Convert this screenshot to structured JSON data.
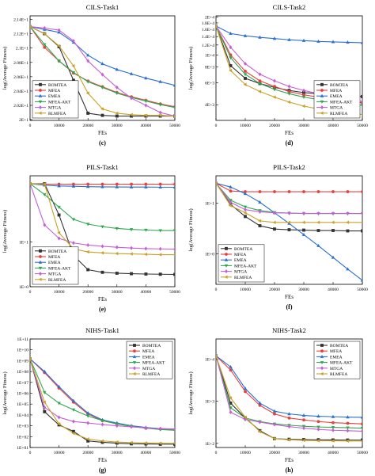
{
  "chart_data": [
    {
      "type": "line",
      "title": "CILS-Task1",
      "caption": "(c)",
      "xlabel": "FEs",
      "ylabel": "log(Average Fitness)",
      "xlim": [
        0,
        50000
      ],
      "ylim": [
        1.999,
        2.145
      ],
      "y_scale": "linear",
      "xticks": [
        0,
        10000,
        20000,
        30000,
        40000,
        50000
      ],
      "xtick_labels": [
        "0",
        "10000",
        "20000",
        "30000",
        "40000",
        "50000"
      ],
      "yticks": [
        2.0,
        2.02,
        2.04,
        2.06,
        2.08,
        2.1,
        2.12,
        2.14
      ],
      "ytick_labels": [
        "2E+1",
        "2.02E+1",
        "2.04E+1",
        "2.06E+1",
        "2.08E+1",
        "2.1E+1",
        "2.12E+1",
        "2.14E+1"
      ],
      "legend_position": "bottom-left",
      "x": [
        0,
        5000,
        10000,
        15000,
        20000,
        25000,
        30000,
        35000,
        40000,
        45000,
        50000
      ],
      "series": [
        {
          "name": "BOMTEA",
          "color": "#333333",
          "marker": "square",
          "values": [
            2.13,
            2.12,
            2.102,
            2.055,
            2.009,
            2.006,
            2.005,
            2.005,
            2.005,
            2.005,
            2.005
          ]
        },
        {
          "name": "MFEA",
          "color": "#e8413c",
          "marker": "circle",
          "values": [
            2.13,
            2.101,
            2.082,
            2.065,
            2.054,
            2.046,
            2.038,
            2.032,
            2.027,
            2.022,
            2.018
          ]
        },
        {
          "name": "EMEA",
          "color": "#2a6fd1",
          "marker": "triangle-up",
          "values": [
            2.13,
            2.126,
            2.122,
            2.108,
            2.09,
            2.078,
            2.07,
            2.064,
            2.058,
            2.053,
            2.048
          ]
        },
        {
          "name": "MFEA-AKT",
          "color": "#2fa84f",
          "marker": "triangle-down",
          "values": [
            2.13,
            2.105,
            2.082,
            2.066,
            2.053,
            2.045,
            2.037,
            2.031,
            2.026,
            2.021,
            2.017
          ]
        },
        {
          "name": "MTGA",
          "color": "#c65fd6",
          "marker": "diamond",
          "values": [
            2.13,
            2.128,
            2.125,
            2.11,
            2.082,
            2.063,
            2.045,
            2.03,
            2.02,
            2.01,
            2.005
          ]
        },
        {
          "name": "RLMFEA",
          "color": "#c9a227",
          "marker": "triangle-left",
          "values": [
            2.13,
            2.12,
            2.103,
            2.075,
            2.037,
            2.015,
            2.009,
            2.007,
            2.006,
            2.006,
            2.005
          ]
        }
      ]
    },
    {
      "type": "line",
      "title": "CILS-Task2",
      "caption": "(d)",
      "xlabel": "FEs",
      "ylabel": "log(Average Fitness)",
      "xlim": [
        0,
        50000
      ],
      "ylim": [
        3000,
        20500
      ],
      "y_scale": "log",
      "xticks": [
        0,
        10000,
        20000,
        30000,
        40000,
        50000
      ],
      "xtick_labels": [
        "0",
        "10000",
        "20000",
        "30000",
        "40000",
        "50000"
      ],
      "yticks": [
        4000,
        6000,
        8000,
        10000,
        12000,
        14000,
        16000,
        18000,
        20000
      ],
      "ytick_labels": [
        "4E+3",
        "6E+3",
        "8E+3",
        "1E+4",
        "1.2E+4",
        "1.4E+4",
        "1.6E+4",
        "1.8E+4",
        "2E+4"
      ],
      "legend_position": "bottom-right",
      "x": [
        0,
        5000,
        10000,
        15000,
        20000,
        25000,
        30000,
        35000,
        40000,
        45000,
        50000
      ],
      "series": [
        {
          "name": "BOMTEA",
          "color": "#333333",
          "marker": "square",
          "values": [
            17000,
            8200,
            6500,
            5900,
            5500,
            5200,
            5000,
            4900,
            4800,
            4700,
            4650
          ]
        },
        {
          "name": "MFEA",
          "color": "#e8413c",
          "marker": "circle",
          "values": [
            17000,
            10000,
            7400,
            6200,
            5600,
            5100,
            4800,
            4600,
            4400,
            4250,
            4150
          ]
        },
        {
          "name": "EMEA",
          "color": "#2a6fd1",
          "marker": "triangle-up",
          "values": [
            17000,
            14800,
            14200,
            13800,
            13500,
            13200,
            13000,
            12800,
            12700,
            12600,
            12500
          ]
        },
        {
          "name": "MFEA-AKT",
          "color": "#2fa84f",
          "marker": "triangle-down",
          "values": [
            17000,
            9500,
            7000,
            5900,
            5300,
            4900,
            4600,
            4400,
            4200,
            4050,
            3950
          ]
        },
        {
          "name": "MTGA",
          "color": "#c65fd6",
          "marker": "diamond",
          "values": [
            17000,
            11500,
            8500,
            7000,
            6200,
            5600,
            5200,
            4900,
            4600,
            4400,
            4250
          ]
        },
        {
          "name": "RLMFEA",
          "color": "#c9a227",
          "marker": "triangle-left",
          "values": [
            17000,
            7500,
            5800,
            5100,
            4600,
            4200,
            3900,
            3700,
            3550,
            3420,
            3350
          ]
        }
      ]
    },
    {
      "type": "line",
      "title": "PILS-Task1",
      "caption": "(e)",
      "xlabel": "FEs",
      "ylabel": "log(Average Fitness)",
      "xlim": [
        0,
        50000
      ],
      "ylim": [
        1,
        300
      ],
      "y_scale": "log",
      "xticks": [
        0,
        10000,
        20000,
        30000,
        40000,
        50000
      ],
      "xtick_labels": [
        "0",
        "10000",
        "20000",
        "30000",
        "40000",
        "50000"
      ],
      "yticks": [
        1,
        10
      ],
      "ytick_labels": [
        "1E+0",
        "1E+1"
      ],
      "legend_position": "bottom-left",
      "x": [
        0,
        5000,
        10000,
        15000,
        20000,
        25000,
        30000,
        35000,
        40000,
        45000,
        50000
      ],
      "series": [
        {
          "name": "BOMTEA",
          "color": "#333333",
          "marker": "square",
          "values": [
            200,
            200,
            40,
            5,
            2.4,
            2.1,
            2.0,
            1.95,
            1.92,
            1.9,
            1.88
          ]
        },
        {
          "name": "MFEA",
          "color": "#e8413c",
          "marker": "circle",
          "values": [
            200,
            195,
            195,
            195,
            195,
            195,
            195,
            195,
            195,
            195,
            195
          ]
        },
        {
          "name": "EMEA",
          "color": "#2a6fd1",
          "marker": "triangle-up",
          "values": [
            200,
            185,
            178,
            175,
            172,
            170,
            169,
            168,
            168,
            167,
            167
          ]
        },
        {
          "name": "MFEA-AKT",
          "color": "#2fa84f",
          "marker": "triangle-down",
          "values": [
            200,
            115,
            60,
            32,
            25,
            22,
            20,
            19,
            18.5,
            18,
            18
          ]
        },
        {
          "name": "MTGA",
          "color": "#c65fd6",
          "marker": "diamond",
          "values": [
            200,
            24,
            12,
            9.5,
            8.5,
            8,
            7.6,
            7.3,
            7.1,
            7,
            6.9
          ]
        },
        {
          "name": "RLMFEA",
          "color": "#c9a227",
          "marker": "triangle-left",
          "values": [
            200,
            195,
            16,
            7,
            6,
            5.7,
            5.5,
            5.4,
            5.3,
            5.2,
            5.2
          ]
        }
      ]
    },
    {
      "type": "line",
      "title": "PILS-Task2",
      "caption": "(f)",
      "xlabel": "FEs",
      "ylabel": "log(Average Fitness)",
      "xlim": [
        0,
        50000
      ],
      "ylim": [
        0.25,
        35
      ],
      "y_scale": "log",
      "xticks": [
        0,
        10000,
        20000,
        30000,
        40000,
        50000
      ],
      "xtick_labels": [
        "0",
        "10000",
        "20000",
        "30000",
        "40000",
        "50000"
      ],
      "yticks": [
        1,
        10
      ],
      "ytick_labels": [
        "1E+0",
        "1E+1"
      ],
      "legend_position": "bottom-left",
      "x": [
        0,
        5000,
        10000,
        15000,
        20000,
        25000,
        30000,
        35000,
        40000,
        45000,
        50000
      ],
      "series": [
        {
          "name": "BOMTEA",
          "color": "#333333",
          "marker": "square",
          "values": [
            25,
            9.5,
            5.5,
            3.6,
            3.1,
            3.0,
            2.95,
            2.9,
            2.9,
            2.85,
            2.85
          ]
        },
        {
          "name": "MFEA",
          "color": "#e8413c",
          "marker": "circle",
          "values": [
            25,
            17.5,
            17,
            17,
            17,
            17,
            17,
            17,
            17,
            17,
            17
          ]
        },
        {
          "name": "EMEA",
          "color": "#2a6fd1",
          "marker": "triangle-up",
          "values": [
            25,
            21,
            15.5,
            10.5,
            6.5,
            4.0,
            2.4,
            1.45,
            0.85,
            0.5,
            0.3
          ]
        },
        {
          "name": "MFEA-AKT",
          "color": "#2fa84f",
          "marker": "triangle-down",
          "values": [
            25,
            11.5,
            8.5,
            7.2,
            6.6,
            6.4,
            6.3,
            6.3,
            6.3,
            6.3,
            6.3
          ]
        },
        {
          "name": "MTGA",
          "color": "#c65fd6",
          "marker": "diamond",
          "values": [
            25,
            10.5,
            7.5,
            6.8,
            6.5,
            6.4,
            6.3,
            6.3,
            6.3,
            6.3,
            6.3
          ]
        },
        {
          "name": "RLMFEA",
          "color": "#c9a227",
          "marker": "triangle-left",
          "values": [
            25,
            9,
            6.5,
            4.5,
            4.2,
            4.2,
            4.2,
            4.2,
            4.2,
            4.2,
            4.2
          ]
        }
      ]
    },
    {
      "type": "line",
      "title": "NIHS-Task1",
      "caption": "(g)",
      "xlabel": "FEs",
      "ylabel": "log(Average Fitness)",
      "xlim": [
        0,
        50000
      ],
      "ylim": [
        10,
        100000000000
      ],
      "y_scale": "log",
      "xticks": [
        0,
        10000,
        20000,
        30000,
        40000,
        50000
      ],
      "xtick_labels": [
        "0",
        "10000",
        "20000",
        "30000",
        "40000",
        "50000"
      ],
      "yticks": [
        10,
        100,
        1000,
        10000,
        100000,
        1000000,
        10000000,
        100000000,
        1000000000,
        10000000000,
        100000000000
      ],
      "ytick_labels": [
        "1E+01",
        "1E+02",
        "1E+03",
        "1E+04",
        "1E+05",
        "1E+06",
        "1E+07",
        "1E+08",
        "1E+09",
        "1E+10",
        "1E+11"
      ],
      "legend_position": "top-right",
      "x": [
        0,
        5000,
        10000,
        15000,
        20000,
        25000,
        30000,
        35000,
        40000,
        45000,
        50000
      ],
      "series": [
        {
          "name": "BOMTEA",
          "color": "#333333",
          "marker": "square",
          "values": [
            1500000000,
            20000,
            1200,
            300,
            40,
            30,
            25,
            22,
            21,
            20,
            20
          ]
        },
        {
          "name": "MFEA",
          "color": "#e8413c",
          "marker": "circle",
          "values": [
            1500000000,
            80000000,
            3000000,
            150000,
            12000,
            3000,
            1500,
            900,
            600,
            500,
            450
          ]
        },
        {
          "name": "EMEA",
          "color": "#2a6fd1",
          "marker": "triangle-up",
          "values": [
            1500000000,
            100000000,
            4000000,
            200000,
            15000,
            3500,
            1800,
            1000,
            700,
            550,
            500
          ]
        },
        {
          "name": "MFEA-AKT",
          "color": "#2fa84f",
          "marker": "triangle-down",
          "values": [
            1500000000,
            1200000,
            120000,
            30000,
            8000,
            3000,
            1500,
            900,
            600,
            450,
            380
          ]
        },
        {
          "name": "MTGA",
          "color": "#c65fd6",
          "marker": "diamond",
          "values": [
            1500000000,
            50000,
            6000,
            2500,
            1800,
            1300,
            1000,
            800,
            650,
            550,
            480
          ]
        },
        {
          "name": "RLMFEA",
          "color": "#c9a227",
          "marker": "triangle-left",
          "values": [
            1500000000,
            150000,
            1500,
            200,
            60,
            40,
            32,
            28,
            26,
            25,
            24
          ]
        }
      ]
    },
    {
      "type": "line",
      "title": "NIHS-Task2",
      "caption": "(h)",
      "xlabel": "FEs",
      "ylabel": "log(Average Fitness)",
      "xlim": [
        0,
        50000
      ],
      "ylim": [
        80,
        30000
      ],
      "y_scale": "log",
      "xticks": [
        0,
        10000,
        20000,
        30000,
        40000,
        50000
      ],
      "xtick_labels": [
        "0",
        "10000",
        "20000",
        "30000",
        "40000",
        "50000"
      ],
      "yticks": [
        100,
        1000,
        10000
      ],
      "ytick_labels": [
        "1E+2",
        "1E+3",
        "1E+4"
      ],
      "legend_position": "top-right",
      "x": [
        0,
        5000,
        10000,
        15000,
        20000,
        25000,
        30000,
        35000,
        40000,
        45000,
        50000
      ],
      "series": [
        {
          "name": "BOMTEA",
          "color": "#333333",
          "marker": "square",
          "values": [
            12000,
            900,
            400,
            200,
            130,
            125,
            123,
            122,
            121,
            120,
            120
          ]
        },
        {
          "name": "MFEA",
          "color": "#e8413c",
          "marker": "circle",
          "values": [
            12000,
            5500,
            1700,
            800,
            500,
            400,
            360,
            330,
            310,
            300,
            290
          ]
        },
        {
          "name": "EMEA",
          "color": "#2a6fd1",
          "marker": "triangle-up",
          "values": [
            12000,
            6500,
            2000,
            900,
            580,
            500,
            460,
            440,
            430,
            420,
            415
          ]
        },
        {
          "name": "MFEA-AKT",
          "color": "#2fa84f",
          "marker": "triangle-down",
          "values": [
            12000,
            700,
            400,
            330,
            290,
            270,
            255,
            245,
            240,
            235,
            230
          ]
        },
        {
          "name": "MTGA",
          "color": "#c65fd6",
          "marker": "diamond",
          "values": [
            12000,
            550,
            370,
            320,
            280,
            250,
            230,
            215,
            205,
            200,
            195
          ]
        },
        {
          "name": "RLMFEA",
          "color": "#c9a227",
          "marker": "triangle-left",
          "values": [
            12000,
            1200,
            420,
            190,
            130,
            122,
            118,
            116,
            115,
            114,
            114
          ]
        }
      ]
    }
  ]
}
